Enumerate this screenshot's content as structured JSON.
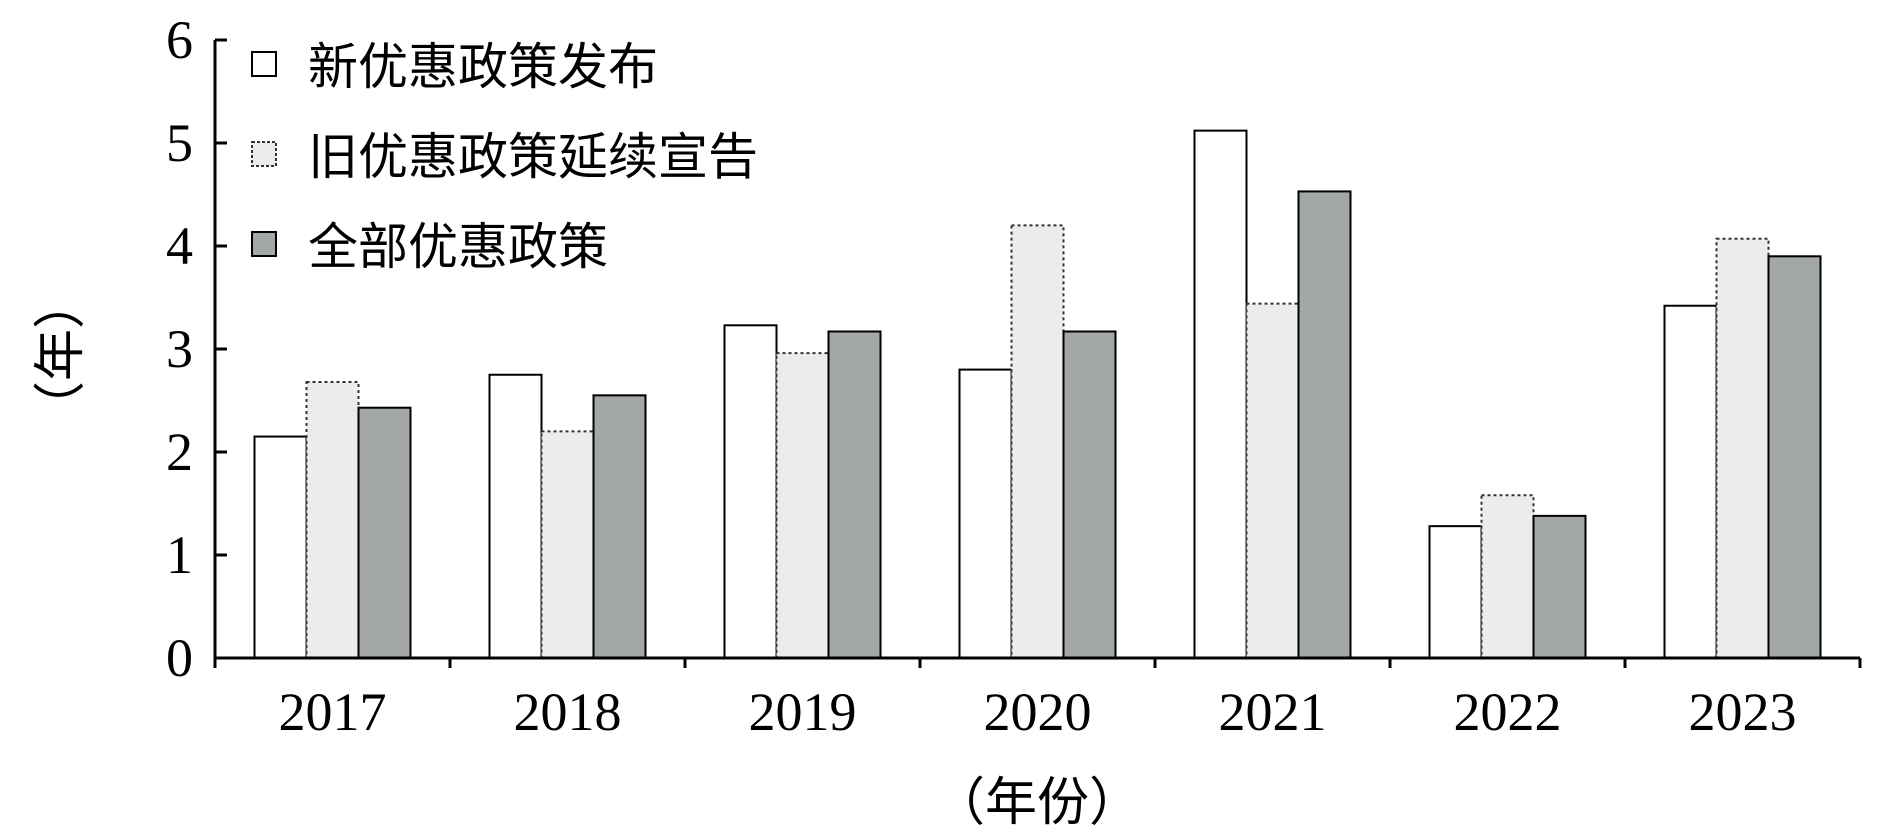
{
  "chart_data": {
    "type": "bar",
    "title": "",
    "xlabel": "（年份）",
    "ylabel": "（年）",
    "categories": [
      "2017",
      "2018",
      "2019",
      "2020",
      "2021",
      "2022",
      "2023"
    ],
    "series": [
      {
        "name": "新优惠政策发布",
        "values": [
          2.15,
          2.75,
          3.23,
          2.8,
          5.12,
          1.28,
          3.42
        ],
        "fill": "#ffffff",
        "stroke": "#000000",
        "dash": false
      },
      {
        "name": "旧优惠政策延续宣告",
        "values": [
          2.68,
          2.2,
          2.96,
          4.2,
          3.44,
          1.58,
          4.07
        ],
        "fill": "#ececea",
        "stroke": "#333333",
        "dash": true
      },
      {
        "name": "全部优惠政策",
        "values": [
          2.43,
          2.55,
          3.17,
          3.17,
          4.53,
          1.38,
          3.9
        ],
        "fill": "#a3a7a6",
        "stroke": "#000000",
        "dash": false
      }
    ],
    "ylim": [
      0,
      6
    ],
    "yticks": [
      "0",
      "1",
      "2",
      "3",
      "4",
      "5",
      "6"
    ],
    "grid": false,
    "legend_position": "top-left"
  }
}
